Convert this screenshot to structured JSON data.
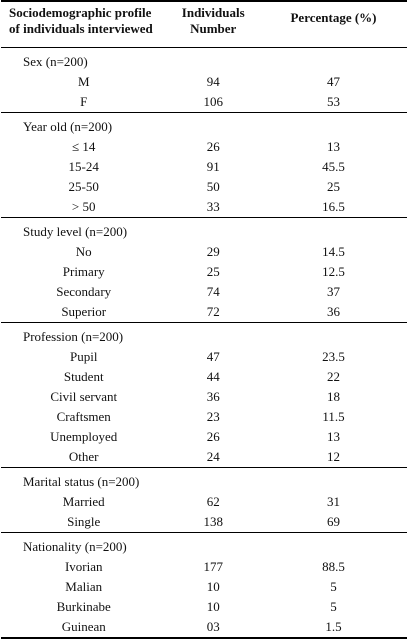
{
  "header": {
    "col1_line1": "Sociodemographic profile",
    "col1_line2": "of individuals interviewed",
    "col2_line1": "Individuals",
    "col2_line2": "Number",
    "col3": "Percentage (%)"
  },
  "sections": [
    {
      "title": "Sex (n=200)",
      "rows": [
        {
          "label": "M",
          "number": "94",
          "percent": "47"
        },
        {
          "label": "F",
          "number": "106",
          "percent": "53"
        }
      ]
    },
    {
      "title": "Year old (n=200)",
      "rows": [
        {
          "label": "≤ 14",
          "number": "26",
          "percent": "13"
        },
        {
          "label": "15-24",
          "number": "91",
          "percent": "45.5"
        },
        {
          "label": "25-50",
          "number": "50",
          "percent": "25"
        },
        {
          "label": "> 50",
          "number": "33",
          "percent": "16.5"
        }
      ]
    },
    {
      "title": "Study level (n=200)",
      "rows": [
        {
          "label": "No",
          "number": "29",
          "percent": "14.5"
        },
        {
          "label": "Primary",
          "number": "25",
          "percent": "12.5"
        },
        {
          "label": "Secondary",
          "number": "74",
          "percent": "37"
        },
        {
          "label": "Superior",
          "number": "72",
          "percent": "36"
        }
      ]
    },
    {
      "title": "Profession (n=200)",
      "rows": [
        {
          "label": "Pupil",
          "number": "47",
          "percent": "23.5"
        },
        {
          "label": "Student",
          "number": "44",
          "percent": "22"
        },
        {
          "label": "Civil servant",
          "number": "36",
          "percent": "18"
        },
        {
          "label": "Craftsmen",
          "number": "23",
          "percent": "11.5"
        },
        {
          "label": "Unemployed",
          "number": "26",
          "percent": "13"
        },
        {
          "label": "Other",
          "number": "24",
          "percent": "12"
        }
      ]
    },
    {
      "title": "Marital status (n=200)",
      "rows": [
        {
          "label": "Married",
          "number": "62",
          "percent": "31"
        },
        {
          "label": "Single",
          "number": "138",
          "percent": "69"
        }
      ]
    },
    {
      "title": "Nationality (n=200)",
      "rows": [
        {
          "label": "Ivorian",
          "number": "177",
          "percent": "88.5"
        },
        {
          "label": "Malian",
          "number": "10",
          "percent": "5"
        },
        {
          "label": "Burkinabe",
          "number": "10",
          "percent": "5"
        },
        {
          "label": "Guinean",
          "number": "03",
          "percent": "1.5"
        }
      ]
    }
  ]
}
